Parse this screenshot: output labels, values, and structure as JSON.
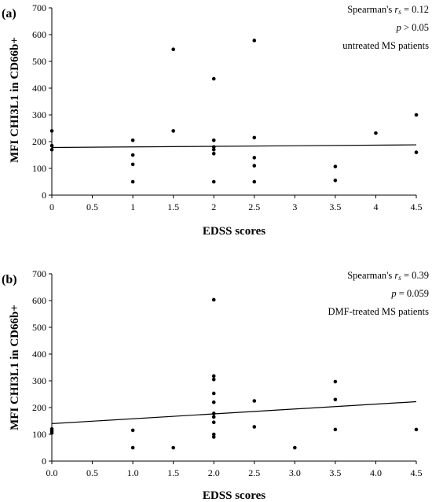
{
  "chart_data": [
    {
      "type": "scatter",
      "panel_label": "(a)",
      "xlabel": "EDSS scores",
      "ylabel": "MFI CHI3L1 in CD66b+",
      "xlim": [
        0,
        4.5
      ],
      "ylim": [
        0,
        700
      ],
      "xticks": [
        0,
        0.5,
        1,
        1.5,
        2,
        2.5,
        3,
        3.5,
        4,
        4.5
      ],
      "xtick_labels": [
        "0",
        "0.5",
        "1",
        "1.5",
        "2",
        "2.5",
        "3",
        "3.5",
        "4",
        "4.5"
      ],
      "yticks": [
        0,
        100,
        200,
        300,
        400,
        500,
        600,
        700
      ],
      "ytick_labels": [
        "0",
        "100",
        "200",
        "300",
        "400",
        "500",
        "600",
        "700"
      ],
      "grid": false,
      "annotations": {
        "stat_prefix": "Spearman's ",
        "stat_symbol": "r",
        "stat_sub": "s",
        "stat_value": " = 0.12",
        "p_symbol": "p",
        "p_value": " > 0.05",
        "group": "untreated MS patients"
      },
      "points": [
        {
          "x": 0,
          "y": 240
        },
        {
          "x": 0,
          "y": 185
        },
        {
          "x": 0,
          "y": 170
        },
        {
          "x": 1,
          "y": 205
        },
        {
          "x": 1,
          "y": 150
        },
        {
          "x": 1,
          "y": 115
        },
        {
          "x": 1,
          "y": 50
        },
        {
          "x": 1.5,
          "y": 545
        },
        {
          "x": 1.5,
          "y": 240
        },
        {
          "x": 2,
          "y": 435
        },
        {
          "x": 2,
          "y": 205
        },
        {
          "x": 2,
          "y": 180
        },
        {
          "x": 2,
          "y": 170
        },
        {
          "x": 2,
          "y": 155
        },
        {
          "x": 2,
          "y": 50
        },
        {
          "x": 2.5,
          "y": 578
        },
        {
          "x": 2.5,
          "y": 215
        },
        {
          "x": 2.5,
          "y": 140
        },
        {
          "x": 2.5,
          "y": 110
        },
        {
          "x": 2.5,
          "y": 50
        },
        {
          "x": 3.5,
          "y": 107
        },
        {
          "x": 3.5,
          "y": 55
        },
        {
          "x": 4,
          "y": 232
        },
        {
          "x": 4.5,
          "y": 300
        },
        {
          "x": 4.5,
          "y": 160
        }
      ],
      "trendline": {
        "x": [
          0,
          4.5
        ],
        "y": [
          178,
          188
        ]
      }
    },
    {
      "type": "scatter",
      "panel_label": "(b)",
      "xlabel": "EDSS scores",
      "ylabel": "MFI CHI3L1 in CD66b+",
      "xlim": [
        0,
        4.5
      ],
      "ylim": [
        0,
        700
      ],
      "xticks": [
        0,
        0.5,
        1,
        1.5,
        2,
        2.5,
        3,
        3.5,
        4,
        4.5
      ],
      "xtick_labels": [
        "0.0",
        "0.5",
        "1.0",
        "1.5",
        "2.0",
        "2.5",
        "3.0",
        "3.5",
        "4.0",
        "4.5"
      ],
      "yticks": [
        0,
        100,
        200,
        300,
        400,
        500,
        600,
        700
      ],
      "ytick_labels": [
        "0",
        "100",
        "200",
        "300",
        "400",
        "500",
        "600",
        "700"
      ],
      "grid": false,
      "annotations": {
        "stat_prefix": "Spearman's ",
        "stat_symbol": "r",
        "stat_sub": "s",
        "stat_value": " = 0.39",
        "p_symbol": "p",
        "p_value": " = 0.059",
        "group": "DMF-treated MS patients"
      },
      "points": [
        {
          "x": 0,
          "y": 120
        },
        {
          "x": 0,
          "y": 112
        },
        {
          "x": 0,
          "y": 105
        },
        {
          "x": 1,
          "y": 115
        },
        {
          "x": 1,
          "y": 50
        },
        {
          "x": 1.5,
          "y": 50
        },
        {
          "x": 2,
          "y": 603
        },
        {
          "x": 2,
          "y": 318
        },
        {
          "x": 2,
          "y": 305
        },
        {
          "x": 2,
          "y": 253
        },
        {
          "x": 2,
          "y": 220
        },
        {
          "x": 2,
          "y": 178
        },
        {
          "x": 2,
          "y": 165
        },
        {
          "x": 2,
          "y": 145
        },
        {
          "x": 2,
          "y": 100
        },
        {
          "x": 2,
          "y": 90
        },
        {
          "x": 2.5,
          "y": 225
        },
        {
          "x": 2.5,
          "y": 128
        },
        {
          "x": 3,
          "y": 50
        },
        {
          "x": 3.5,
          "y": 297
        },
        {
          "x": 3.5,
          "y": 230
        },
        {
          "x": 3.5,
          "y": 118
        },
        {
          "x": 4.5,
          "y": 118
        }
      ],
      "trendline": {
        "x": [
          0,
          4.5
        ],
        "y": [
          140,
          222
        ]
      }
    }
  ]
}
